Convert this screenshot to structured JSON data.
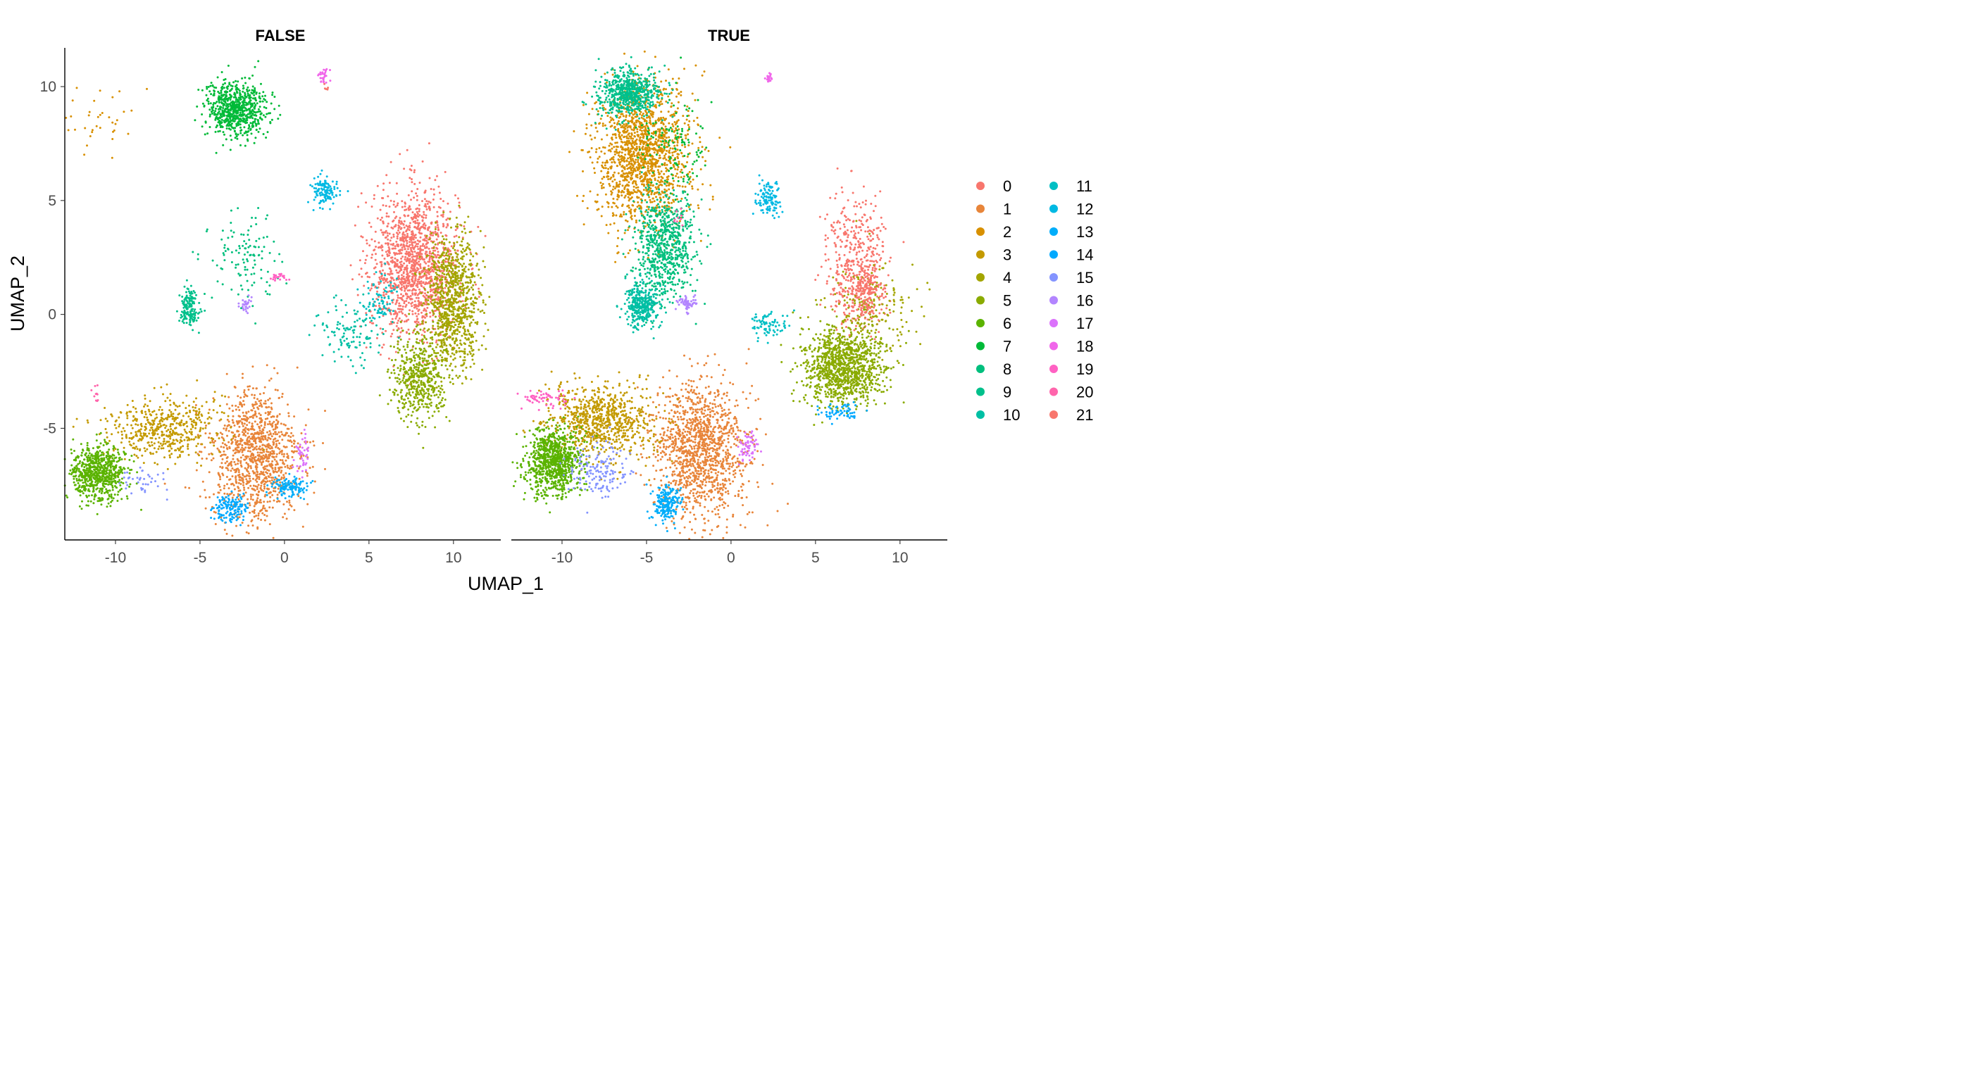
{
  "chart_data": {
    "type": "scatter",
    "xlabel": "UMAP_1",
    "ylabel": "UMAP_2",
    "xlim": [
      -13,
      12.8
    ],
    "ylim": [
      -9.9,
      11.7
    ],
    "x_ticks": [
      -10,
      -5,
      0,
      5,
      10
    ],
    "y_ticks": [
      -5,
      0,
      5,
      10
    ],
    "x_tick_labels": [
      "-10",
      "-5",
      "0",
      "5",
      "10"
    ],
    "y_tick_labels": [
      "-5",
      "0",
      "5",
      "10"
    ],
    "grid": false,
    "legend_position": "right",
    "legend_columns": 2,
    "facets": [
      {
        "title": "FALSE",
        "clusters": [
          {
            "id": "0",
            "x": 7.7,
            "y": 2.2,
            "sx": 1.3,
            "sy": 1.6,
            "n": 1400
          },
          {
            "id": "1",
            "x": -1.7,
            "y": -6.2,
            "sx": 1.3,
            "sy": 1.4,
            "n": 1100
          },
          {
            "id": "2",
            "x": -11.0,
            "y": 8.5,
            "sx": 1.2,
            "sy": 0.9,
            "n": 40
          },
          {
            "id": "3",
            "x": -7.2,
            "y": -5.0,
            "sx": 1.6,
            "sy": 0.7,
            "n": 500
          },
          {
            "id": "4",
            "x": 10.0,
            "y": 0.6,
            "sx": 0.8,
            "sy": 1.4,
            "n": 900
          },
          {
            "id": "5",
            "x": 7.9,
            "y": -2.8,
            "sx": 0.8,
            "sy": 0.9,
            "n": 500
          },
          {
            "id": "6",
            "x": -11.0,
            "y": -7.0,
            "sx": 0.8,
            "sy": 0.6,
            "n": 700
          },
          {
            "id": "7",
            "x": -2.9,
            "y": 9.0,
            "sx": 0.9,
            "sy": 0.6,
            "n": 700
          },
          {
            "id": "8",
            "x": -2.5,
            "y": 2.4,
            "sx": 1.0,
            "sy": 1.1,
            "n": 120
          },
          {
            "id": "9",
            "x": -5.6,
            "y": 0.3,
            "sx": 0.3,
            "sy": 0.4,
            "n": 160
          },
          {
            "id": "10",
            "x": 4.0,
            "y": -0.8,
            "sx": 1.0,
            "sy": 0.7,
            "n": 120
          },
          {
            "id": "11",
            "x": 5.6,
            "y": 0.6,
            "sx": 0.5,
            "sy": 0.5,
            "n": 80
          },
          {
            "id": "12",
            "x": 2.3,
            "y": 5.4,
            "sx": 0.4,
            "sy": 0.3,
            "n": 120
          },
          {
            "id": "13",
            "x": 0.4,
            "y": -7.6,
            "sx": 0.6,
            "sy": 0.2,
            "n": 120
          },
          {
            "id": "14",
            "x": -3.2,
            "y": -8.5,
            "sx": 0.5,
            "sy": 0.3,
            "n": 140
          },
          {
            "id": "15",
            "x": -8.5,
            "y": -7.3,
            "sx": 0.7,
            "sy": 0.3,
            "n": 40
          },
          {
            "id": "16",
            "x": -2.3,
            "y": 0.5,
            "sx": 0.2,
            "sy": 0.2,
            "n": 30
          },
          {
            "id": "17",
            "x": 1.0,
            "y": -6.1,
            "sx": 0.3,
            "sy": 0.4,
            "n": 40
          },
          {
            "id": "18",
            "x": 2.3,
            "y": 10.5,
            "sx": 0.15,
            "sy": 0.15,
            "n": 30
          },
          {
            "id": "19",
            "x": -0.3,
            "y": 1.7,
            "sx": 0.3,
            "sy": 0.1,
            "n": 25
          },
          {
            "id": "20",
            "x": -11.2,
            "y": -3.6,
            "sx": 0.2,
            "sy": 0.3,
            "n": 10
          },
          {
            "id": "21",
            "x": 2.4,
            "y": 10.0,
            "sx": 0.1,
            "sy": 0.1,
            "n": 5
          }
        ]
      },
      {
        "title": "TRUE",
        "clusters": [
          {
            "id": "0",
            "x": 7.4,
            "y": 2.2,
            "sx": 0.9,
            "sy": 1.4,
            "n": 450
          },
          {
            "id": "1",
            "x": -1.9,
            "y": -6.0,
            "sx": 1.4,
            "sy": 1.5,
            "n": 1300
          },
          {
            "id": "2",
            "x": -5.3,
            "y": 7.0,
            "sx": 1.4,
            "sy": 1.6,
            "n": 1500
          },
          {
            "id": "3",
            "x": -7.7,
            "y": -4.7,
            "sx": 1.6,
            "sy": 0.8,
            "n": 800
          },
          {
            "id": "4",
            "x": 8.3,
            "y": 0.2,
            "sx": 1.3,
            "sy": 1.0,
            "n": 200
          },
          {
            "id": "5",
            "x": 6.6,
            "y": -2.3,
            "sx": 1.2,
            "sy": 0.8,
            "n": 1100
          },
          {
            "id": "6",
            "x": -10.5,
            "y": -6.5,
            "sx": 0.8,
            "sy": 0.7,
            "n": 900
          },
          {
            "id": "7",
            "x": -3.5,
            "y": 7.5,
            "sx": 1.0,
            "sy": 1.0,
            "n": 120
          },
          {
            "id": "8",
            "x": -4.0,
            "y": 3.0,
            "sx": 0.9,
            "sy": 1.2,
            "n": 700
          },
          {
            "id": "9",
            "x": -6.1,
            "y": 9.7,
            "sx": 0.9,
            "sy": 0.5,
            "n": 600
          },
          {
            "id": "10",
            "x": -5.3,
            "y": 0.4,
            "sx": 0.5,
            "sy": 0.5,
            "n": 350
          },
          {
            "id": "11",
            "x": 2.3,
            "y": -0.5,
            "sx": 0.5,
            "sy": 0.3,
            "n": 80
          },
          {
            "id": "12",
            "x": 2.2,
            "y": 5.0,
            "sx": 0.4,
            "sy": 0.4,
            "n": 120
          },
          {
            "id": "13",
            "x": -3.8,
            "y": -8.3,
            "sx": 0.4,
            "sy": 0.4,
            "n": 200
          },
          {
            "id": "14",
            "x": 6.6,
            "y": -4.3,
            "sx": 0.7,
            "sy": 0.2,
            "n": 60
          },
          {
            "id": "15",
            "x": -8.0,
            "y": -6.9,
            "sx": 0.9,
            "sy": 0.6,
            "n": 150
          },
          {
            "id": "16",
            "x": -2.6,
            "y": 0.5,
            "sx": 0.3,
            "sy": 0.2,
            "n": 60
          },
          {
            "id": "17",
            "x": 1.0,
            "y": -5.8,
            "sx": 0.3,
            "sy": 0.3,
            "n": 60
          },
          {
            "id": "18",
            "x": 2.3,
            "y": 10.4,
            "sx": 0.1,
            "sy": 0.1,
            "n": 20
          },
          {
            "id": "19",
            "x": -11.0,
            "y": -3.7,
            "sx": 0.6,
            "sy": 0.2,
            "n": 60
          },
          {
            "id": "20",
            "x": -3.1,
            "y": 4.3,
            "sx": 0.2,
            "sy": 0.2,
            "n": 10
          },
          {
            "id": "21",
            "x": 8.0,
            "y": 1.0,
            "sx": 0.4,
            "sy": 0.6,
            "n": 150
          }
        ]
      }
    ],
    "series": [
      {
        "name": "0",
        "color": "#F8766D"
      },
      {
        "name": "1",
        "color": "#E8853A"
      },
      {
        "name": "2",
        "color": "#D89000"
      },
      {
        "name": "3",
        "color": "#C49A00"
      },
      {
        "name": "4",
        "color": "#A3A500"
      },
      {
        "name": "5",
        "color": "#8AAB00"
      },
      {
        "name": "6",
        "color": "#5BB300"
      },
      {
        "name": "7",
        "color": "#00BA38"
      },
      {
        "name": "8",
        "color": "#00BF7D"
      },
      {
        "name": "9",
        "color": "#00C08B"
      },
      {
        "name": "10",
        "color": "#00BFA4"
      },
      {
        "name": "11",
        "color": "#00BFC4"
      },
      {
        "name": "12",
        "color": "#00B9E3"
      },
      {
        "name": "13",
        "color": "#00ADFA"
      },
      {
        "name": "14",
        "color": "#00A9FF"
      },
      {
        "name": "15",
        "color": "#8494FF"
      },
      {
        "name": "16",
        "color": "#B385FF"
      },
      {
        "name": "17",
        "color": "#DB72FB"
      },
      {
        "name": "18",
        "color": "#F066EA"
      },
      {
        "name": "19",
        "color": "#FF61C3"
      },
      {
        "name": "20",
        "color": "#FF65AC"
      },
      {
        "name": "21",
        "color": "#F8766D"
      }
    ]
  }
}
